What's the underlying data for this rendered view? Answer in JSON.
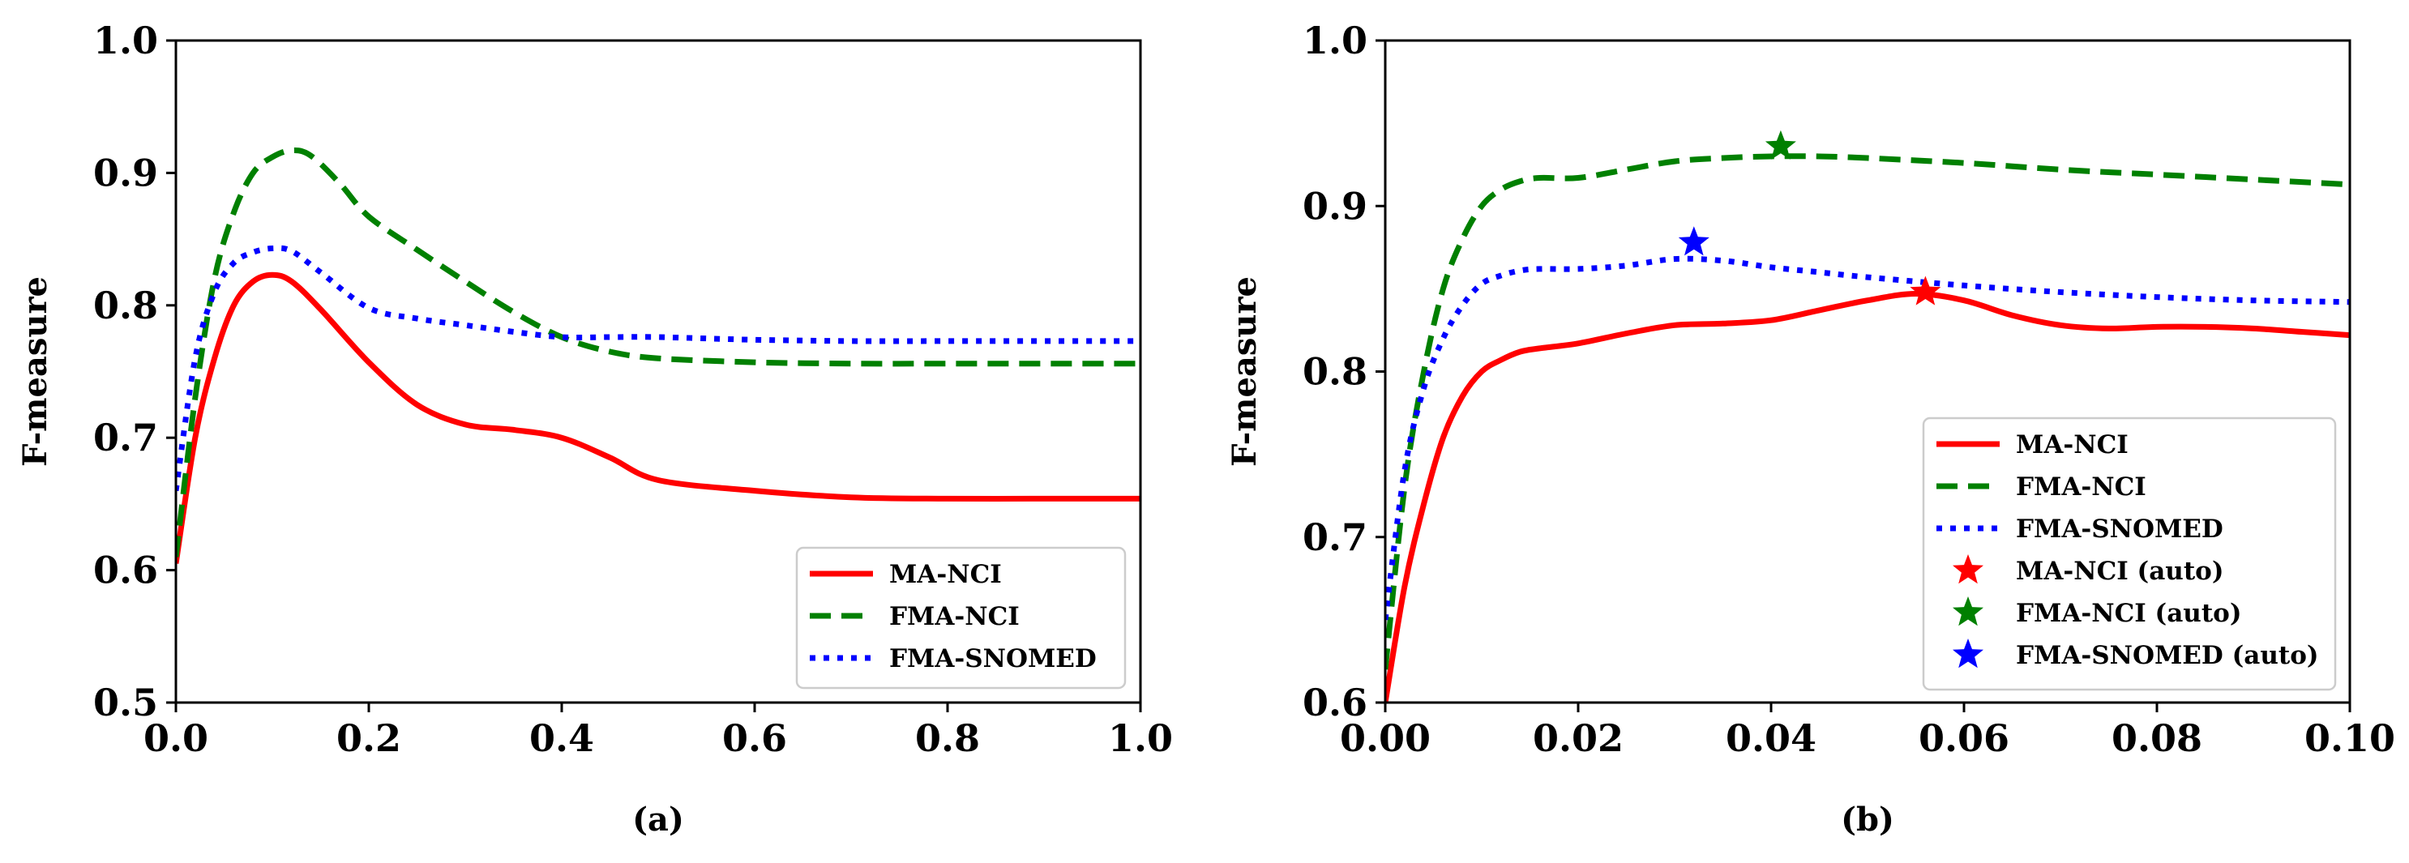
{
  "chart_data": [
    {
      "type": "line",
      "panel_label": "(a)",
      "xlabel": "",
      "ylabel": "F-measure",
      "xlim": [
        0.0,
        1.0
      ],
      "ylim": [
        0.5,
        1.0
      ],
      "xticks": [
        "0.0",
        "0.2",
        "0.4",
        "0.6",
        "0.8",
        "1.0"
      ],
      "yticks": [
        "0.5",
        "0.6",
        "0.7",
        "0.8",
        "0.9",
        "1.0"
      ],
      "grid": false,
      "legend_position": "bottom-right",
      "series": [
        {
          "name": "MA-NCI",
          "color": "#ff0000",
          "style": "solid",
          "x": [
            0.0,
            0.02,
            0.04,
            0.06,
            0.08,
            0.1,
            0.12,
            0.15,
            0.2,
            0.25,
            0.3,
            0.35,
            0.4,
            0.45,
            0.5,
            0.6,
            0.7,
            0.8,
            0.9,
            1.0
          ],
          "y": [
            0.605,
            0.7,
            0.76,
            0.8,
            0.818,
            0.823,
            0.818,
            0.797,
            0.757,
            0.725,
            0.71,
            0.706,
            0.7,
            0.685,
            0.668,
            0.66,
            0.655,
            0.654,
            0.654,
            0.654
          ]
        },
        {
          "name": "FMA-NCI",
          "color": "#008000",
          "style": "dashed",
          "x": [
            0.0,
            0.02,
            0.04,
            0.06,
            0.08,
            0.1,
            0.12,
            0.14,
            0.17,
            0.2,
            0.25,
            0.3,
            0.35,
            0.4,
            0.45,
            0.5,
            0.6,
            0.7,
            0.8,
            0.9,
            1.0
          ],
          "y": [
            0.61,
            0.73,
            0.82,
            0.87,
            0.9,
            0.912,
            0.917,
            0.913,
            0.892,
            0.867,
            0.842,
            0.818,
            0.795,
            0.776,
            0.765,
            0.76,
            0.757,
            0.756,
            0.756,
            0.756,
            0.756
          ]
        },
        {
          "name": "FMA-SNOMED",
          "color": "#0000ff",
          "style": "dotted",
          "x": [
            0.0,
            0.02,
            0.04,
            0.06,
            0.08,
            0.1,
            0.12,
            0.15,
            0.2,
            0.25,
            0.3,
            0.35,
            0.4,
            0.45,
            0.5,
            0.6,
            0.7,
            0.8,
            0.9,
            1.0
          ],
          "y": [
            0.66,
            0.76,
            0.81,
            0.832,
            0.84,
            0.843,
            0.841,
            0.825,
            0.798,
            0.79,
            0.785,
            0.78,
            0.776,
            0.776,
            0.776,
            0.774,
            0.773,
            0.773,
            0.773,
            0.773
          ]
        }
      ]
    },
    {
      "type": "line",
      "panel_label": "(b)",
      "xlabel": "",
      "ylabel": "F-measure",
      "xlim": [
        0.0,
        0.1
      ],
      "ylim": [
        0.6,
        1.0
      ],
      "xticks": [
        "0.00",
        "0.02",
        "0.04",
        "0.06",
        "0.08",
        "0.10"
      ],
      "yticks": [
        "0.6",
        "0.7",
        "0.8",
        "0.9",
        "1.0"
      ],
      "grid": false,
      "legend_position": "bottom-right",
      "series": [
        {
          "name": "MA-NCI",
          "color": "#ff0000",
          "style": "solid",
          "x": [
            0.0,
            0.002,
            0.004,
            0.006,
            0.008,
            0.01,
            0.012,
            0.014,
            0.016,
            0.02,
            0.025,
            0.03,
            0.035,
            0.04,
            0.045,
            0.05,
            0.055,
            0.06,
            0.065,
            0.07,
            0.075,
            0.08,
            0.085,
            0.09,
            0.095,
            0.1
          ],
          "y": [
            0.6,
            0.67,
            0.72,
            0.76,
            0.785,
            0.8,
            0.807,
            0.812,
            0.814,
            0.817,
            0.823,
            0.828,
            0.829,
            0.831,
            0.837,
            0.843,
            0.847,
            0.843,
            0.834,
            0.828,
            0.826,
            0.827,
            0.827,
            0.826,
            0.824,
            0.822
          ]
        },
        {
          "name": "FMA-NCI",
          "color": "#008000",
          "style": "dashed",
          "x": [
            0.0,
            0.002,
            0.004,
            0.006,
            0.008,
            0.01,
            0.012,
            0.014,
            0.016,
            0.02,
            0.025,
            0.03,
            0.035,
            0.04,
            0.045,
            0.05,
            0.06,
            0.07,
            0.08,
            0.09,
            0.1
          ],
          "y": [
            0.62,
            0.73,
            0.8,
            0.85,
            0.88,
            0.9,
            0.91,
            0.915,
            0.917,
            0.917,
            0.922,
            0.927,
            0.929,
            0.93,
            0.93,
            0.929,
            0.926,
            0.922,
            0.919,
            0.916,
            0.913
          ]
        },
        {
          "name": "FMA-SNOMED",
          "color": "#0000ff",
          "style": "dotted",
          "x": [
            0.0,
            0.002,
            0.004,
            0.006,
            0.008,
            0.01,
            0.012,
            0.014,
            0.016,
            0.02,
            0.025,
            0.03,
            0.035,
            0.04,
            0.045,
            0.05,
            0.06,
            0.07,
            0.08,
            0.09,
            0.1
          ],
          "y": [
            0.65,
            0.74,
            0.79,
            0.82,
            0.84,
            0.853,
            0.858,
            0.861,
            0.862,
            0.862,
            0.864,
            0.868,
            0.867,
            0.863,
            0.86,
            0.857,
            0.852,
            0.848,
            0.845,
            0.843,
            0.842
          ]
        },
        {
          "name": "MA-NCI (auto)",
          "color": "#ff0000",
          "style": "star",
          "x": [
            0.056
          ],
          "y": [
            0.848
          ]
        },
        {
          "name": "FMA-NCI (auto)",
          "color": "#008000",
          "style": "star",
          "x": [
            0.041
          ],
          "y": [
            0.936
          ]
        },
        {
          "name": "FMA-SNOMED (auto)",
          "color": "#0000ff",
          "style": "star",
          "x": [
            0.032
          ],
          "y": [
            0.878
          ]
        }
      ]
    }
  ]
}
